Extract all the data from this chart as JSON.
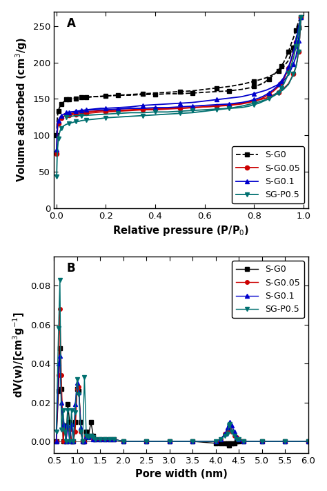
{
  "panel_A": {
    "title": "A",
    "xlabel": "Relative pressure (P/P$_0$)",
    "ylabel": "Volume adsorbed (cm$^3$/g)",
    "ylim": [
      0,
      270
    ],
    "xlim": [
      -0.01,
      1.02
    ],
    "yticks": [
      0,
      50,
      100,
      150,
      200,
      250
    ],
    "xticks": [
      0.0,
      0.2,
      0.4,
      0.6,
      0.8,
      1.0
    ],
    "series": {
      "S-G0": {
        "color": "#000000",
        "marker": "s",
        "linestyle": "--",
        "adsorption_x": [
          0.001,
          0.003,
          0.005,
          0.008,
          0.01,
          0.015,
          0.02,
          0.03,
          0.04,
          0.05,
          0.06,
          0.07,
          0.08,
          0.09,
          0.1,
          0.12,
          0.15,
          0.18,
          0.2,
          0.25,
          0.3,
          0.35,
          0.4,
          0.45,
          0.5,
          0.55,
          0.6,
          0.65,
          0.7,
          0.75,
          0.8,
          0.85,
          0.87,
          0.9,
          0.92,
          0.94,
          0.96,
          0.97,
          0.975,
          0.98,
          0.985,
          0.99
        ],
        "adsorption_y": [
          100,
          120,
          128,
          133,
          136,
          140,
          143,
          146,
          148,
          149,
          150,
          150,
          150,
          151,
          151,
          152,
          153,
          153,
          154,
          155,
          156,
          157,
          158,
          159,
          160,
          161,
          163,
          165,
          167,
          170,
          174,
          179,
          182,
          188,
          194,
          203,
          220,
          232,
          240,
          248,
          255,
          262
        ]
      },
      "S-G0.05": {
        "color": "#cc0000",
        "marker": "o",
        "linestyle": "-",
        "adsorption_x": [
          0.001,
          0.003,
          0.005,
          0.008,
          0.01,
          0.015,
          0.02,
          0.03,
          0.04,
          0.05,
          0.06,
          0.07,
          0.08,
          0.09,
          0.1,
          0.12,
          0.15,
          0.18,
          0.2,
          0.25,
          0.3,
          0.35,
          0.4,
          0.45,
          0.5,
          0.55,
          0.6,
          0.65,
          0.7,
          0.75,
          0.8,
          0.85,
          0.87,
          0.9,
          0.92,
          0.94,
          0.96,
          0.97,
          0.975,
          0.98,
          0.985,
          0.99
        ],
        "adsorption_y": [
          75,
          100,
          110,
          116,
          119,
          122,
          124,
          126,
          127,
          128,
          128,
          129,
          129,
          129,
          130,
          130,
          131,
          132,
          132,
          133,
          134,
          135,
          135,
          136,
          137,
          138,
          139,
          140,
          142,
          144,
          147,
          151,
          154,
          159,
          164,
          171,
          184,
          194,
          202,
          215,
          234,
          262
        ]
      },
      "S-G0.1": {
        "color": "#0000cc",
        "marker": "^",
        "linestyle": "-",
        "adsorption_x": [
          0.001,
          0.003,
          0.005,
          0.008,
          0.01,
          0.015,
          0.02,
          0.03,
          0.04,
          0.05,
          0.06,
          0.07,
          0.08,
          0.09,
          0.1,
          0.12,
          0.15,
          0.18,
          0.2,
          0.25,
          0.3,
          0.35,
          0.4,
          0.45,
          0.5,
          0.55,
          0.6,
          0.65,
          0.7,
          0.75,
          0.8,
          0.85,
          0.87,
          0.9,
          0.92,
          0.94,
          0.96,
          0.97,
          0.975,
          0.98,
          0.985,
          0.99
        ],
        "adsorption_y": [
          80,
          105,
          115,
          120,
          122,
          125,
          127,
          129,
          130,
          131,
          132,
          132,
          133,
          133,
          134,
          135,
          136,
          137,
          137,
          138,
          139,
          141,
          142,
          143,
          144,
          145,
          147,
          149,
          151,
          153,
          157,
          162,
          165,
          170,
          175,
          183,
          198,
          208,
          217,
          230,
          247,
          262
        ]
      },
      "SG-P0.5": {
        "color": "#007070",
        "marker": "v",
        "linestyle": "-",
        "adsorption_x": [
          0.001,
          0.003,
          0.005,
          0.008,
          0.01,
          0.015,
          0.02,
          0.03,
          0.04,
          0.05,
          0.06,
          0.07,
          0.08,
          0.09,
          0.1,
          0.12,
          0.15,
          0.18,
          0.2,
          0.25,
          0.3,
          0.35,
          0.4,
          0.45,
          0.5,
          0.55,
          0.6,
          0.65,
          0.7,
          0.75,
          0.8,
          0.85,
          0.87,
          0.9,
          0.92,
          0.94,
          0.96,
          0.97,
          0.975,
          0.98,
          0.985,
          0.99
        ],
        "adsorption_y": [
          43,
          70,
          83,
          95,
          100,
          106,
          110,
          113,
          115,
          116,
          117,
          118,
          119,
          119,
          120,
          121,
          122,
          123,
          124,
          125,
          126,
          127,
          128,
          129,
          130,
          131,
          133,
          135,
          137,
          140,
          144,
          149,
          152,
          158,
          163,
          170,
          184,
          194,
          203,
          215,
          234,
          262
        ]
      }
    },
    "desorption": {
      "S-G0": {
        "x": [
          0.99,
          0.98,
          0.975,
          0.97,
          0.96,
          0.95,
          0.94,
          0.93,
          0.92,
          0.91,
          0.9,
          0.88,
          0.86,
          0.84,
          0.82,
          0.8,
          0.78,
          0.75,
          0.7,
          0.65,
          0.6,
          0.55,
          0.5,
          0.45,
          0.4,
          0.35,
          0.3,
          0.25,
          0.2,
          0.15,
          0.1,
          0.08,
          0.06,
          0.04
        ],
        "y": [
          262,
          256,
          250,
          244,
          234,
          225,
          215,
          207,
          200,
          195,
          190,
          183,
          177,
          172,
          169,
          167,
          165,
          163,
          161,
          160,
          159,
          158,
          157,
          157,
          156,
          156,
          155,
          155,
          154,
          153,
          152,
          151,
          150,
          149
        ]
      },
      "S-G0.05": {
        "x": [
          0.99,
          0.98,
          0.975,
          0.97,
          0.96,
          0.95,
          0.94,
          0.93,
          0.92,
          0.91,
          0.9,
          0.88,
          0.86,
          0.84,
          0.82,
          0.8,
          0.78,
          0.75,
          0.7,
          0.65,
          0.6,
          0.55,
          0.5,
          0.45,
          0.4,
          0.35,
          0.3,
          0.25,
          0.2,
          0.15,
          0.1,
          0.08,
          0.06,
          0.04
        ],
        "y": [
          262,
          245,
          236,
          228,
          213,
          202,
          192,
          184,
          177,
          172,
          167,
          161,
          156,
          152,
          149,
          147,
          145,
          143,
          141,
          140,
          139,
          138,
          137,
          137,
          136,
          136,
          135,
          134,
          134,
          133,
          132,
          131,
          130,
          129
        ]
      },
      "S-G0.1": {
        "x": [
          0.99,
          0.98,
          0.975,
          0.97,
          0.96,
          0.95,
          0.94,
          0.93,
          0.92,
          0.91,
          0.9,
          0.88,
          0.86,
          0.84,
          0.82,
          0.8,
          0.78,
          0.75,
          0.7,
          0.65,
          0.6,
          0.55,
          0.5,
          0.45,
          0.4,
          0.35,
          0.3,
          0.25,
          0.2,
          0.15,
          0.1,
          0.08,
          0.06,
          0.04
        ],
        "y": [
          262,
          248,
          239,
          230,
          215,
          204,
          194,
          186,
          179,
          174,
          169,
          163,
          158,
          154,
          151,
          149,
          147,
          145,
          143,
          142,
          141,
          140,
          139,
          138,
          138,
          137,
          137,
          136,
          135,
          135,
          134,
          133,
          132,
          131
        ]
      },
      "SG-P0.5": {
        "x": [
          0.99,
          0.98,
          0.975,
          0.97,
          0.96,
          0.95,
          0.94,
          0.93,
          0.92,
          0.91,
          0.9,
          0.88,
          0.86,
          0.84,
          0.82,
          0.8,
          0.78,
          0.75,
          0.7,
          0.65,
          0.6,
          0.55,
          0.5,
          0.45,
          0.4,
          0.35,
          0.3,
          0.25,
          0.2,
          0.15,
          0.1,
          0.08,
          0.06,
          0.04
        ],
        "y": [
          262,
          242,
          232,
          222,
          206,
          195,
          185,
          177,
          170,
          165,
          160,
          155,
          150,
          147,
          144,
          142,
          140,
          138,
          137,
          136,
          135,
          134,
          133,
          132,
          132,
          131,
          131,
          130,
          129,
          128,
          127,
          127,
          126,
          125
        ]
      }
    }
  },
  "panel_B": {
    "title": "B",
    "xlabel": "Pore width (nm)",
    "ylabel": "dV(w)/[cm$^3$g$^{-1}$]",
    "ylim": [
      -0.006,
      0.095
    ],
    "xlim": [
      0.5,
      6.0
    ],
    "yticks": [
      0.0,
      0.02,
      0.04,
      0.06,
      0.08
    ],
    "xticks": [
      0.5,
      1.0,
      1.5,
      2.0,
      2.5,
      3.0,
      3.5,
      4.0,
      4.5,
      5.0,
      5.5,
      6.0
    ],
    "series": {
      "S-G0": {
        "color": "#000000",
        "marker": "s",
        "x": [
          0.55,
          0.6,
          0.63,
          0.66,
          0.7,
          0.73,
          0.76,
          0.8,
          0.84,
          0.88,
          0.92,
          0.96,
          1.0,
          1.04,
          1.08,
          1.12,
          1.16,
          1.2,
          1.25,
          1.3,
          1.35,
          1.4,
          1.5,
          1.6,
          1.7,
          1.8,
          2.0,
          2.5,
          3.0,
          3.5,
          4.0,
          4.1,
          4.2,
          4.25,
          4.28,
          4.3,
          4.35,
          4.4,
          4.45,
          4.5,
          4.6,
          5.0,
          5.5,
          6.0
        ],
        "y": [
          0.0,
          0.026,
          0.048,
          0.027,
          0.0,
          0.008,
          0.0,
          0.019,
          0.01,
          0.0,
          0.0,
          0.01,
          0.027,
          0.026,
          0.01,
          0.0,
          0.0,
          0.005,
          0.003,
          0.01,
          0.003,
          0.001,
          0.001,
          0.001,
          0.001,
          0.001,
          0.0,
          0.0,
          0.0,
          0.0,
          -0.001,
          -0.001,
          -0.001,
          -0.001,
          -0.002,
          -0.001,
          -0.001,
          -0.001,
          0.0,
          0.0,
          0.0,
          0.0,
          0.0,
          0.0
        ]
      },
      "S-G0.05": {
        "color": "#cc0000",
        "marker": "o",
        "x": [
          0.55,
          0.6,
          0.63,
          0.66,
          0.7,
          0.73,
          0.76,
          0.8,
          0.84,
          0.88,
          0.92,
          0.96,
          1.0,
          1.04,
          1.08,
          1.12,
          1.16,
          1.2,
          1.25,
          1.3,
          1.35,
          1.4,
          1.5,
          1.6,
          1.7,
          1.8,
          2.0,
          2.5,
          3.0,
          3.5,
          4.0,
          4.1,
          4.2,
          4.25,
          4.28,
          4.3,
          4.35,
          4.4,
          4.45,
          4.5,
          4.6,
          5.0,
          5.5,
          6.0
        ],
        "y": [
          0.0,
          0.034,
          0.068,
          0.034,
          0.0,
          0.006,
          0.0,
          0.007,
          0.006,
          0.0,
          0.0,
          0.005,
          0.027,
          0.028,
          0.005,
          0.0,
          0.0,
          0.003,
          0.002,
          0.003,
          0.001,
          0.001,
          0.001,
          0.001,
          0.001,
          0.001,
          0.0,
          0.0,
          0.0,
          0.0,
          0.0,
          0.001,
          0.004,
          0.006,
          0.006,
          0.006,
          0.005,
          0.003,
          0.002,
          0.001,
          0.0,
          0.0,
          0.0,
          0.0
        ]
      },
      "S-G0.1": {
        "color": "#0000cc",
        "marker": "^",
        "x": [
          0.55,
          0.6,
          0.63,
          0.66,
          0.7,
          0.73,
          0.76,
          0.8,
          0.84,
          0.88,
          0.92,
          0.96,
          1.0,
          1.04,
          1.08,
          1.12,
          1.16,
          1.2,
          1.25,
          1.3,
          1.35,
          1.4,
          1.5,
          1.6,
          1.7,
          1.8,
          2.0,
          2.5,
          3.0,
          3.5,
          4.0,
          4.1,
          4.2,
          4.25,
          4.28,
          4.3,
          4.35,
          4.4,
          4.45,
          4.5,
          4.6,
          5.0,
          5.5,
          6.0
        ],
        "y": [
          0.0,
          0.04,
          0.044,
          0.02,
          0.009,
          0.008,
          0.0,
          0.008,
          0.0,
          0.009,
          0.0,
          0.019,
          0.03,
          0.025,
          0.007,
          0.0,
          0.0,
          0.003,
          0.002,
          0.003,
          0.001,
          0.001,
          0.001,
          0.001,
          0.001,
          0.001,
          0.0,
          0.0,
          0.0,
          0.0,
          0.0,
          0.001,
          0.004,
          0.007,
          0.009,
          0.01,
          0.008,
          0.005,
          0.002,
          0.001,
          0.0,
          0.0,
          0.0,
          0.0
        ]
      },
      "SG-P0.5": {
        "color": "#007070",
        "marker": "v",
        "x": [
          0.55,
          0.6,
          0.63,
          0.66,
          0.7,
          0.73,
          0.76,
          0.8,
          0.84,
          0.88,
          0.92,
          0.96,
          1.0,
          1.04,
          1.08,
          1.12,
          1.16,
          1.2,
          1.25,
          1.3,
          1.35,
          1.4,
          1.5,
          1.6,
          1.7,
          1.8,
          2.0,
          2.5,
          3.0,
          3.5,
          4.0,
          4.1,
          4.2,
          4.25,
          4.28,
          4.3,
          4.35,
          4.4,
          4.45,
          4.5,
          4.6,
          5.0,
          5.5,
          6.0
        ],
        "y": [
          0.005,
          0.058,
          0.083,
          0.006,
          0.016,
          0.005,
          0.0,
          0.016,
          0.0,
          0.016,
          0.0,
          0.015,
          0.032,
          0.024,
          0.005,
          0.0,
          0.033,
          0.003,
          0.002,
          0.003,
          0.002,
          0.001,
          0.001,
          0.001,
          0.001,
          0.001,
          0.0,
          0.0,
          0.0,
          0.0,
          0.0,
          0.001,
          0.003,
          0.004,
          0.008,
          0.009,
          0.005,
          0.003,
          0.001,
          0.001,
          0.0,
          0.0,
          0.0,
          0.0
        ]
      }
    }
  }
}
